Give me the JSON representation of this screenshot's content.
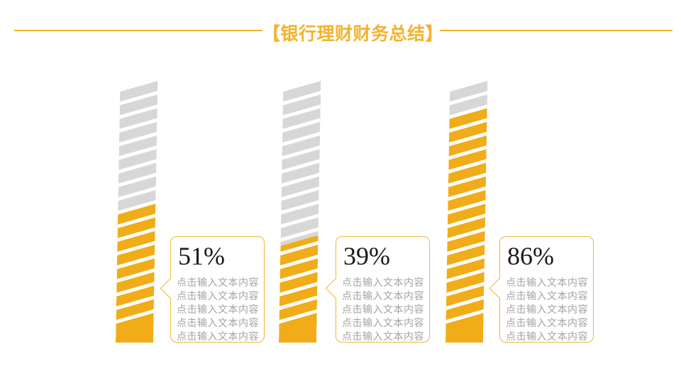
{
  "slide": {
    "title": "【银行理财财务总结】"
  },
  "theme": {
    "accent": "#F3B32B",
    "bar_fill": "#F0AD19",
    "bar_rest": "#D7D7D7",
    "callout_border": "#F0B43A",
    "body_gray": "#A3A3A3"
  },
  "chart_data": {
    "type": "bar",
    "title": "【银行理财财务总结】",
    "unit": "%",
    "values": [
      51,
      39,
      86
    ],
    "ylim": [
      0,
      100
    ],
    "legend": "none",
    "grid": false,
    "bars": [
      {
        "value": 51,
        "label": "51%",
        "lines": [
          "点击输入文本内容",
          "点击输入文本内容",
          "点击输入文本内容",
          "点击输入文本内容",
          "点击输入文本内容"
        ]
      },
      {
        "value": 39,
        "label": "39%",
        "lines": [
          "点击输入文本内容",
          "点击输入文本内容",
          "点击输入文本内容",
          "点击输入文本内容",
          "点击输入文本内容"
        ]
      },
      {
        "value": 86,
        "label": "86%",
        "lines": [
          "点击输入文本内容",
          "点击输入文本内容",
          "点击输入文本内容",
          "点击输入文本内容",
          "点击输入文本内容"
        ]
      }
    ]
  }
}
